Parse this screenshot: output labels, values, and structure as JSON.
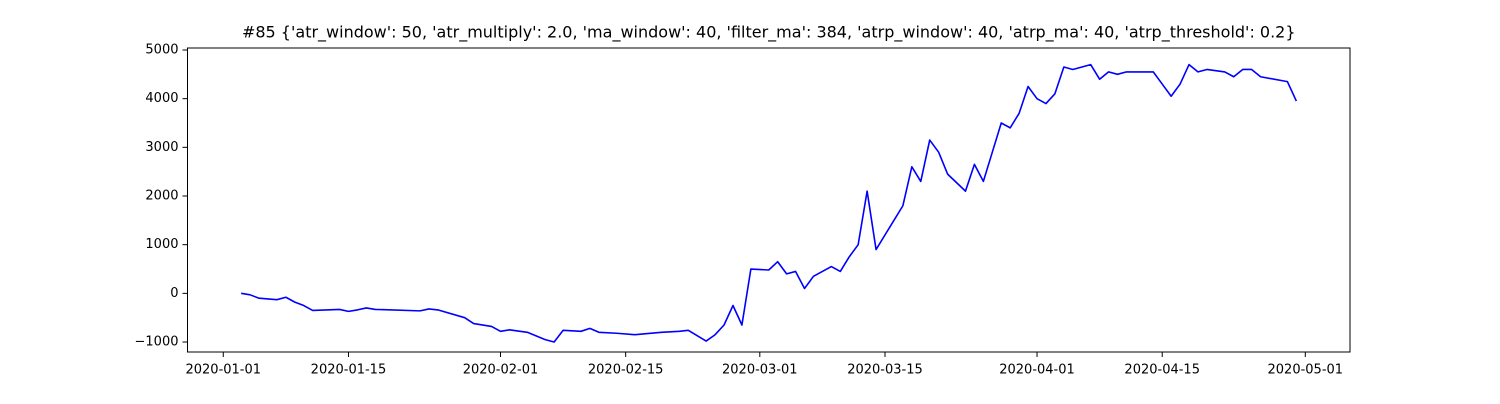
{
  "chart_data": {
    "type": "line",
    "title": "#85 {'atr_window': 50, 'atr_multiply': 2.0, 'ma_window': 40, 'filter_ma': 384, 'atrp_window': 40, 'atrp_ma': 40, 'atrp_threshold': 0.2}",
    "color": "#0000ff",
    "x": [
      "2020-01-03",
      "2020-01-04",
      "2020-01-05",
      "2020-01-07",
      "2020-01-08",
      "2020-01-09",
      "2020-01-10",
      "2020-01-11",
      "2020-01-14",
      "2020-01-15",
      "2020-01-16",
      "2020-01-17",
      "2020-01-18",
      "2020-01-23",
      "2020-01-24",
      "2020-01-25",
      "2020-01-28",
      "2020-01-29",
      "2020-01-31",
      "2020-02-01",
      "2020-02-02",
      "2020-02-04",
      "2020-02-06",
      "2020-02-07",
      "2020-02-08",
      "2020-02-10",
      "2020-02-11",
      "2020-02-12",
      "2020-02-14",
      "2020-02-16",
      "2020-02-19",
      "2020-02-21",
      "2020-02-22",
      "2020-02-24",
      "2020-02-25",
      "2020-02-26",
      "2020-02-27",
      "2020-02-28",
      "2020-02-29",
      "2020-03-02",
      "2020-03-03",
      "2020-03-04",
      "2020-03-05",
      "2020-03-06",
      "2020-03-07",
      "2020-03-09",
      "2020-03-10",
      "2020-03-11",
      "2020-03-12",
      "2020-03-13",
      "2020-03-14",
      "2020-03-17",
      "2020-03-18",
      "2020-03-19",
      "2020-03-20",
      "2020-03-21",
      "2020-03-22",
      "2020-03-24",
      "2020-03-25",
      "2020-03-26",
      "2020-03-27",
      "2020-03-28",
      "2020-03-29",
      "2020-03-30",
      "2020-03-31",
      "2020-04-01",
      "2020-04-02",
      "2020-04-03",
      "2020-04-04",
      "2020-04-05",
      "2020-04-07",
      "2020-04-08",
      "2020-04-09",
      "2020-04-10",
      "2020-04-11",
      "2020-04-14",
      "2020-04-15",
      "2020-04-16",
      "2020-04-17",
      "2020-04-18",
      "2020-04-19",
      "2020-04-20",
      "2020-04-22",
      "2020-04-23",
      "2020-04-24",
      "2020-04-25",
      "2020-04-26",
      "2020-04-29",
      "2020-04-30"
    ],
    "values": [
      0,
      -30,
      -100,
      -130,
      -80,
      -180,
      -250,
      -350,
      -330,
      -370,
      -340,
      -300,
      -330,
      -360,
      -320,
      -340,
      -500,
      -620,
      -680,
      -780,
      -750,
      -800,
      -950,
      -1000,
      -760,
      -780,
      -720,
      -800,
      -820,
      -850,
      -800,
      -780,
      -760,
      -980,
      -850,
      -650,
      -250,
      -650,
      500,
      480,
      650,
      400,
      450,
      100,
      350,
      550,
      450,
      750,
      1000,
      2100,
      900,
      1800,
      2600,
      2300,
      3150,
      2900,
      2450,
      2100,
      2650,
      2300,
      2900,
      3500,
      3400,
      3700,
      4250,
      4000,
      3900,
      4100,
      4650,
      4600,
      4700,
      4400,
      4550,
      4500,
      4550,
      4550,
      4300,
      4050,
      4300,
      4700,
      4550,
      4600,
      4550,
      4450,
      4600,
      4600,
      4450,
      4350,
      3950
    ],
    "xlim": [
      "2019-12-28",
      "2020-05-06"
    ],
    "xticks": [
      "2020-01-01",
      "2020-01-15",
      "2020-02-01",
      "2020-02-15",
      "2020-03-01",
      "2020-03-15",
      "2020-04-01",
      "2020-04-15",
      "2020-05-01"
    ],
    "ylim": [
      -1205,
      5041
    ],
    "yticks": [
      {
        "value": -1000,
        "label": "−1000"
      },
      0,
      1000,
      2000,
      3000,
      4000,
      5000
    ]
  }
}
